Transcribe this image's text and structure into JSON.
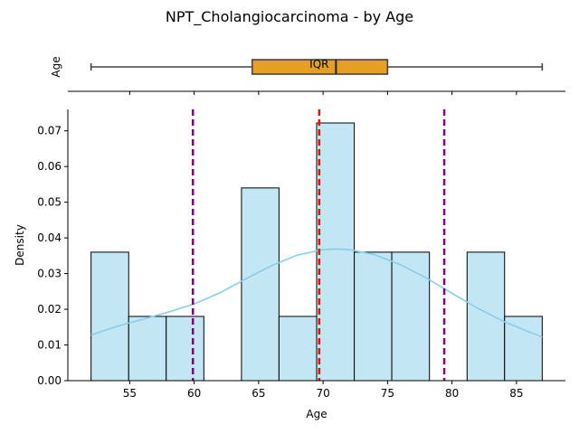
{
  "figure": {
    "title": "NPT_Cholangiocarcinoma - by Age"
  },
  "chart_data": [
    {
      "type": "boxplot",
      "ylabel": "Age",
      "xlim": [
        50.2,
        88.8
      ],
      "box": {
        "min": 52,
        "q1": 64.5,
        "median": 71.0,
        "q3": 75.0,
        "max": 87,
        "color": "#e69f22"
      },
      "iqr_label": "IQR",
      "xticks": [
        55,
        60,
        65,
        70,
        75,
        80,
        85
      ],
      "xticklabels_visible": false
    },
    {
      "type": "histogram",
      "xlabel": "Age",
      "ylabel": "Density",
      "xlim": [
        50.2,
        88.8
      ],
      "ylim": [
        0,
        0.076
      ],
      "bin_edges": [
        52.0,
        54.92,
        57.83,
        60.75,
        63.67,
        66.58,
        69.5,
        72.42,
        75.33,
        78.25,
        81.17,
        84.08,
        87.0
      ],
      "densities": [
        0.036,
        0.018,
        0.018,
        0.0,
        0.054,
        0.018,
        0.0722,
        0.036,
        0.036,
        0.0,
        0.036,
        0.018
      ],
      "bar_color": "#c3e6f4",
      "kde": {
        "color": "#87ceeb",
        "x": [
          52,
          54,
          56,
          58,
          60,
          62,
          64,
          66,
          68,
          70,
          71,
          72,
          74,
          76,
          78,
          80,
          82,
          84,
          86,
          87
        ],
        "y": [
          0.0128,
          0.0152,
          0.0172,
          0.0192,
          0.0215,
          0.0246,
          0.0285,
          0.0322,
          0.0352,
          0.0367,
          0.0369,
          0.0367,
          0.0353,
          0.0325,
          0.0288,
          0.0245,
          0.0203,
          0.0166,
          0.0136,
          0.0122
        ]
      },
      "vlines": [
        {
          "x": 59.9,
          "color": "#800080",
          "style": "dashed"
        },
        {
          "x": 69.7,
          "color": "#ff0000",
          "style": "dashed"
        },
        {
          "x": 79.4,
          "color": "#800080",
          "style": "dashed"
        }
      ],
      "xticks": [
        55,
        60,
        65,
        70,
        75,
        80,
        85
      ],
      "yticks": [
        0.0,
        0.01,
        0.02,
        0.03,
        0.04,
        0.05,
        0.06,
        0.07
      ],
      "ytick_labels": [
        "0.00",
        "0.01",
        "0.02",
        "0.03",
        "0.04",
        "0.05",
        "0.06",
        "0.07"
      ],
      "grid": false
    }
  ]
}
